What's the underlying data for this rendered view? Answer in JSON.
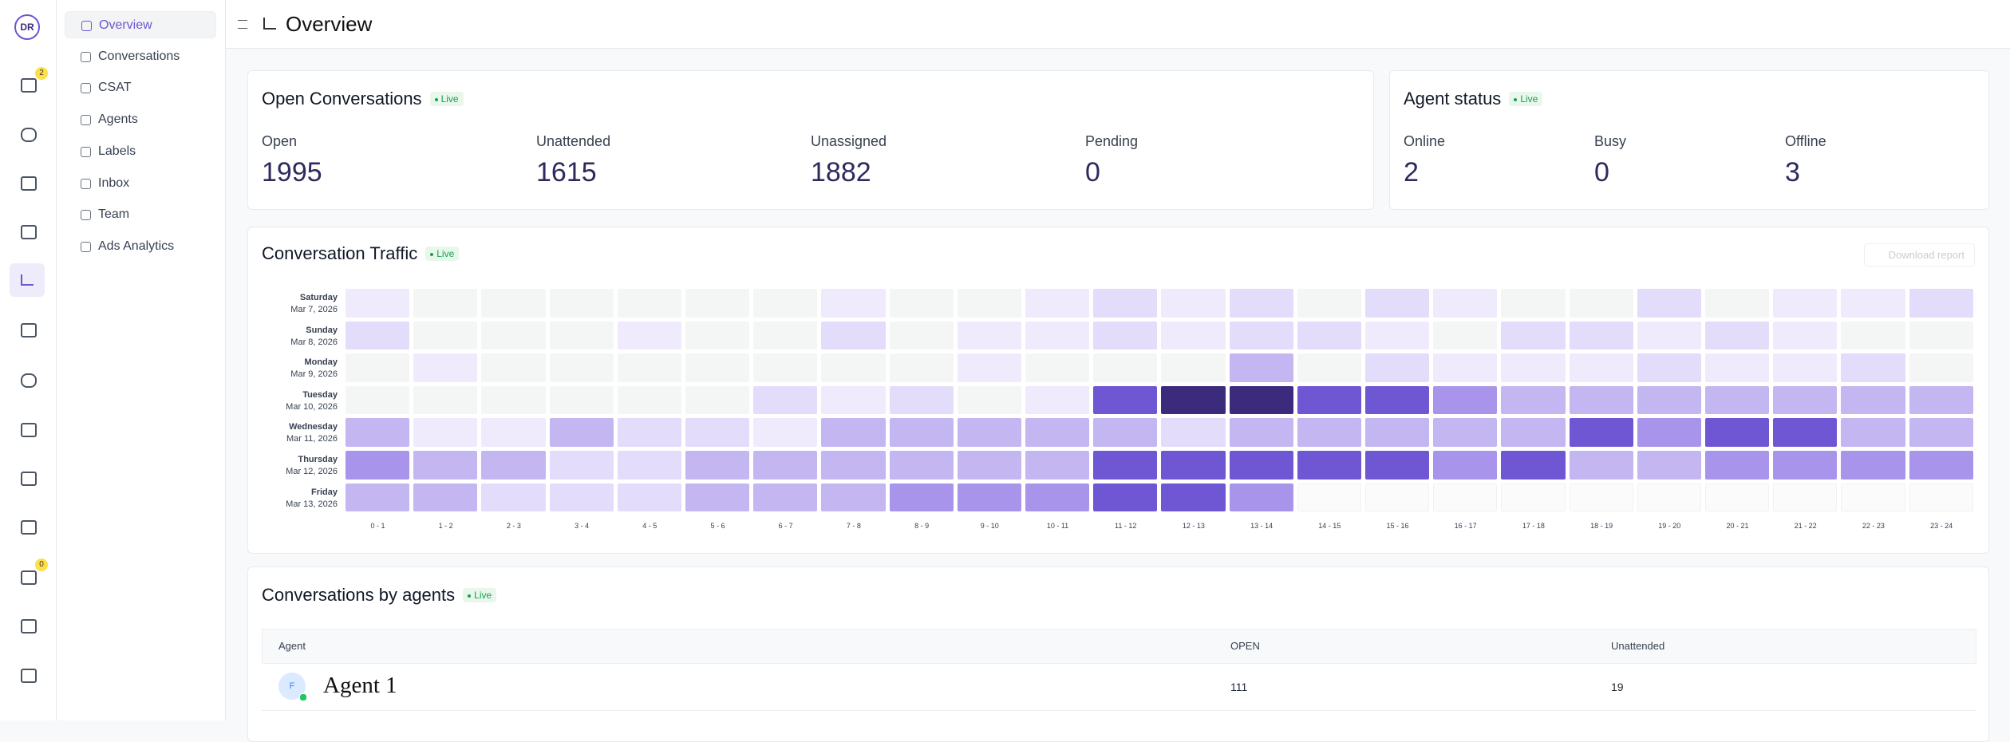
{
  "sidebar": {
    "badges": [
      "2",
      "0"
    ],
    "nav": [
      "Overview",
      "Conversations",
      "CSAT",
      "Agents",
      "Labels",
      "Inbox",
      "Team",
      "Ads Analytics"
    ]
  },
  "header": {
    "title": "Overview"
  },
  "open_conversations": {
    "title": "Open Conversations",
    "live": "Live",
    "metrics": [
      {
        "label": "Open",
        "value": 1995
      },
      {
        "label": "Unattended",
        "value": 1615
      },
      {
        "label": "Unassigned",
        "value": 1882
      },
      {
        "label": "Pending",
        "value": 0
      }
    ]
  },
  "agent_status": {
    "title": "Agent status",
    "live": "Live",
    "metrics": [
      {
        "label": "Online",
        "value": 2
      },
      {
        "label": "Busy",
        "value": 0
      },
      {
        "label": "Offline",
        "value": 3
      }
    ]
  },
  "traffic": {
    "live": "Live",
    "download": "Download report"
  },
  "chart_data": {
    "type": "heatmap",
    "title": "Conversation Traffic",
    "rows": [
      {
        "day": "Saturday",
        "date": "Mar 7, 2026"
      },
      {
        "day": "Sunday",
        "date": "Mar 8, 2026"
      },
      {
        "day": "Monday",
        "date": "Mar 9, 2026"
      },
      {
        "day": "Tuesday",
        "date": "Mar 10, 2026"
      },
      {
        "day": "Wednesday",
        "date": "Mar 11, 2026"
      },
      {
        "day": "Thursday",
        "date": "Mar 12, 2026"
      },
      {
        "day": "Friday",
        "date": "Mar 13, 2026"
      }
    ],
    "columns": [
      "0 - 1",
      "1 - 2",
      "2 - 3",
      "3 - 4",
      "4 - 5",
      "5 - 6",
      "6 - 7",
      "7 - 8",
      "8 - 9",
      "9 - 10",
      "10 - 11",
      "11 - 12",
      "12 - 13",
      "13 - 14",
      "14 - 15",
      "15 - 16",
      "16 - 17",
      "17 - 18",
      "18 - 19",
      "19 - 20",
      "20 - 21",
      "21 - 22",
      "22 - 23",
      "23 - 24"
    ],
    "values": [
      [
        1,
        0,
        0,
        0,
        0,
        0,
        0,
        1,
        0,
        0,
        1,
        2,
        1,
        2,
        0,
        2,
        1,
        0,
        0,
        2,
        0,
        1,
        1,
        2
      ],
      [
        2,
        0,
        0,
        0,
        1,
        0,
        0,
        2,
        0,
        1,
        1,
        2,
        1,
        2,
        2,
        1,
        0,
        2,
        2,
        1,
        2,
        1,
        0,
        0
      ],
      [
        0,
        1,
        0,
        0,
        0,
        0,
        0,
        0,
        0,
        1,
        0,
        0,
        0,
        3,
        0,
        2,
        1,
        1,
        1,
        2,
        1,
        1,
        2,
        0
      ],
      [
        0,
        0,
        0,
        0,
        0,
        0,
        2,
        1,
        2,
        0,
        1,
        5,
        6,
        6,
        5,
        5,
        4,
        3,
        3,
        3,
        3,
        3,
        3,
        3
      ],
      [
        3,
        1,
        1,
        3,
        2,
        2,
        1,
        3,
        3,
        3,
        3,
        3,
        2,
        3,
        3,
        3,
        3,
        3,
        5,
        4,
        5,
        5,
        3,
        3
      ],
      [
        4,
        3,
        3,
        2,
        2,
        3,
        3,
        3,
        3,
        3,
        3,
        5,
        5,
        5,
        5,
        5,
        4,
        5,
        3,
        3,
        4,
        4,
        4,
        4
      ],
      [
        3,
        3,
        2,
        2,
        2,
        3,
        3,
        3,
        4,
        4,
        4,
        5,
        5,
        4,
        null,
        null,
        null,
        null,
        null,
        null,
        null,
        null,
        null,
        null
      ]
    ],
    "colors": [
      "#f4f5f5",
      "#efebfc",
      "#e3dcfa",
      "#c4b6f1",
      "#a894ea",
      "#6f56d3",
      "#3c2a7c"
    ]
  },
  "agents": {
    "title": "Conversations by agents",
    "live": "Live",
    "headers": [
      "Agent",
      "OPEN",
      "Unattended"
    ],
    "rows": [
      {
        "avatar": "F",
        "name": "Agent 1",
        "open": 111,
        "unattended": 19
      }
    ]
  }
}
